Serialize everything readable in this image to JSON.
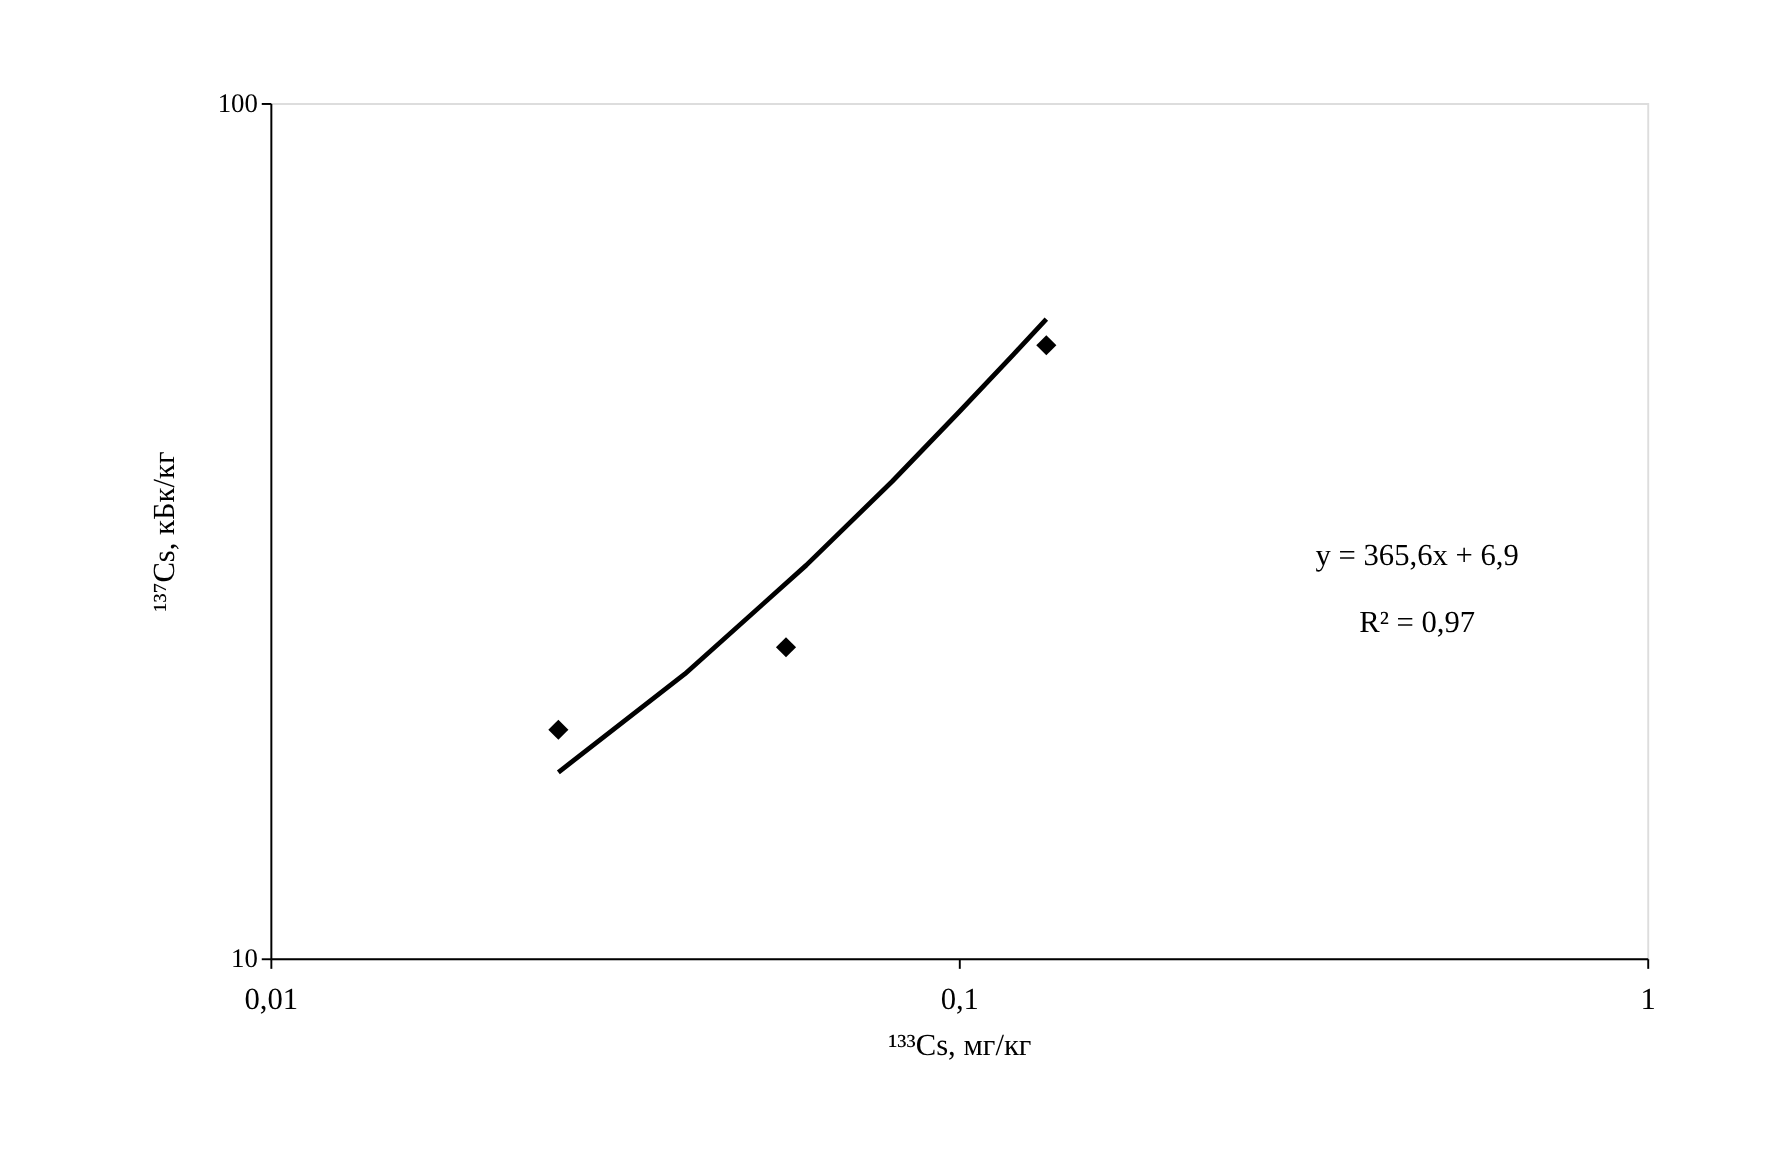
{
  "chart_data": {
    "type": "scatter",
    "xlabel": "¹³³Cs, мг/кг",
    "ylabel": "¹³⁷Cs, кБк/кг",
    "log": "xy",
    "grid": false,
    "xlim": [
      0.01,
      1
    ],
    "xticks": [
      {
        "value": 0.01,
        "label": "0,01"
      },
      {
        "value": 0.1,
        "label": "0,1"
      },
      {
        "value": 1,
        "label": "1"
      }
    ],
    "ylim": [
      10,
      100
    ],
    "yticks": [
      10,
      100
    ],
    "series": [
      {
        "type": "scatter",
        "color": "#000000",
        "marker": "diamond",
        "x": [
          0.0262,
          0.0561,
          0.134
        ],
        "values": [
          18.5,
          23.1,
          52.1
        ]
      },
      {
        "type": "line",
        "color": "#000000",
        "marker": "none",
        "line_style": "solid",
        "x": [
          0.0262,
          0.04,
          0.06,
          0.08,
          0.1,
          0.12,
          0.134
        ],
        "values": [
          16.5,
          21.5,
          28.8,
          36.1,
          43.5,
          50.8,
          55.9
        ]
      }
    ],
    "annotations": [
      "y = 365,6x + 6,9",
      "R² = 0,97"
    ]
  }
}
